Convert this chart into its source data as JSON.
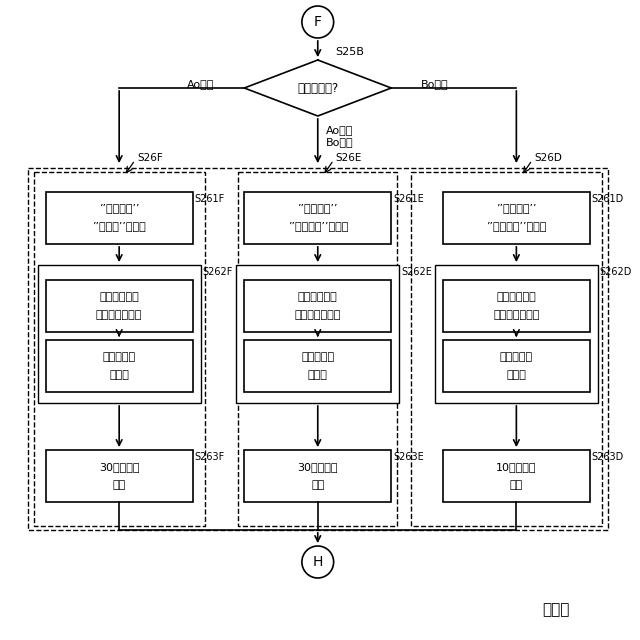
{
  "title": "図１４",
  "bg_color": "#ffffff",
  "node_F_label": "F",
  "diamond_label": "開口面積は?",
  "diamond_step": "S25B",
  "branch_Ao": "Ao以上",
  "branch_Bo": "Bo未満",
  "branch_mid_line1": "Ao未満",
  "branch_mid_line2": "Bo以上",
  "step_S26F": "S26F",
  "step_S26E": "S26E",
  "step_S26D": "S26D",
  "node_H_label": "H",
  "nodes_261": [
    {
      "step": "S261F",
      "line1": "’’変化注意’’",
      "line2": "’’面積大’’を表示"
    },
    {
      "step": "S261E",
      "line1": "’’変化注意’’",
      "line2": "’’面積注意’’を表示"
    },
    {
      "step": "S261D",
      "line1": "’’変化注意’’",
      "line2": "’’閉塞傍向’’を表示"
    }
  ],
  "nodes_262_top": [
    {
      "step": "S262F",
      "line1": "塩基度調整剤",
      "line2": "供給装置「低」"
    },
    {
      "step": "S262E",
      "line1": "塩基度調整剤",
      "line2": "供給装置「中」"
    },
    {
      "step": "S262D",
      "line1": "塩基度調整剤",
      "line2": "供給装置「高」"
    }
  ],
  "nodes_262_bot": [
    {
      "line1": "バーナ装置",
      "line2": "「低」"
    },
    {
      "line1": "バーナ装置",
      "line2": "「中」"
    },
    {
      "line1": "バーナ装置",
      "line2": "「高」"
    }
  ],
  "nodes_263": [
    {
      "step": "S263F",
      "line1": "30分間程度",
      "line2": "待機"
    },
    {
      "step": "S263E",
      "line1": "30分間程度",
      "line2": "待機"
    },
    {
      "step": "S263D",
      "line1": "10分間程度",
      "line2": "待機"
    }
  ]
}
